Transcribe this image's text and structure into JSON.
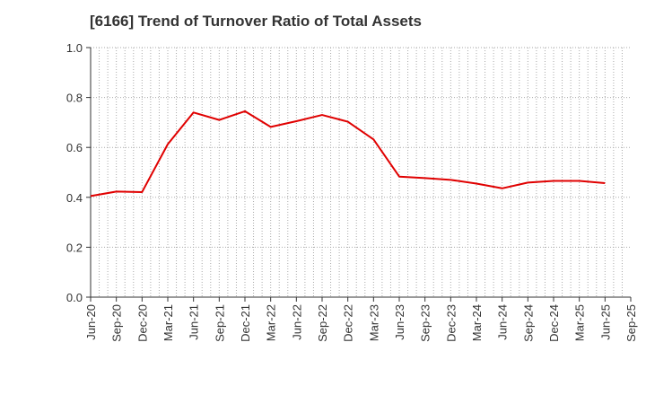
{
  "chart_data": {
    "type": "line",
    "title": "[6166]  Trend of Turnover Ratio of Total Assets",
    "xlabel": "",
    "ylabel": "",
    "categories": [
      "Jun-20",
      "Sep-20",
      "Dec-20",
      "Mar-21",
      "Jun-21",
      "Sep-21",
      "Dec-21",
      "Mar-22",
      "Jun-22",
      "Sep-22",
      "Dec-22",
      "Mar-23",
      "Jun-23",
      "Sep-23",
      "Dec-23",
      "Mar-24",
      "Jun-24",
      "Sep-24",
      "Dec-24",
      "Mar-25",
      "Jun-25",
      "Sep-25"
    ],
    "yticks": [
      "0.0",
      "0.2",
      "0.4",
      "0.6",
      "0.8",
      "1.0"
    ],
    "ylim": [
      0,
      1.0
    ],
    "grid": true,
    "series": [
      {
        "values": [
          0.405,
          0.423,
          0.421,
          0.613,
          0.74,
          0.71,
          0.745,
          0.682,
          0.705,
          0.73,
          0.703,
          0.632,
          0.483,
          0.477,
          0.47,
          0.455,
          0.436,
          0.459,
          0.466,
          0.466,
          0.457,
          null
        ],
        "color": "#e00000"
      }
    ]
  }
}
